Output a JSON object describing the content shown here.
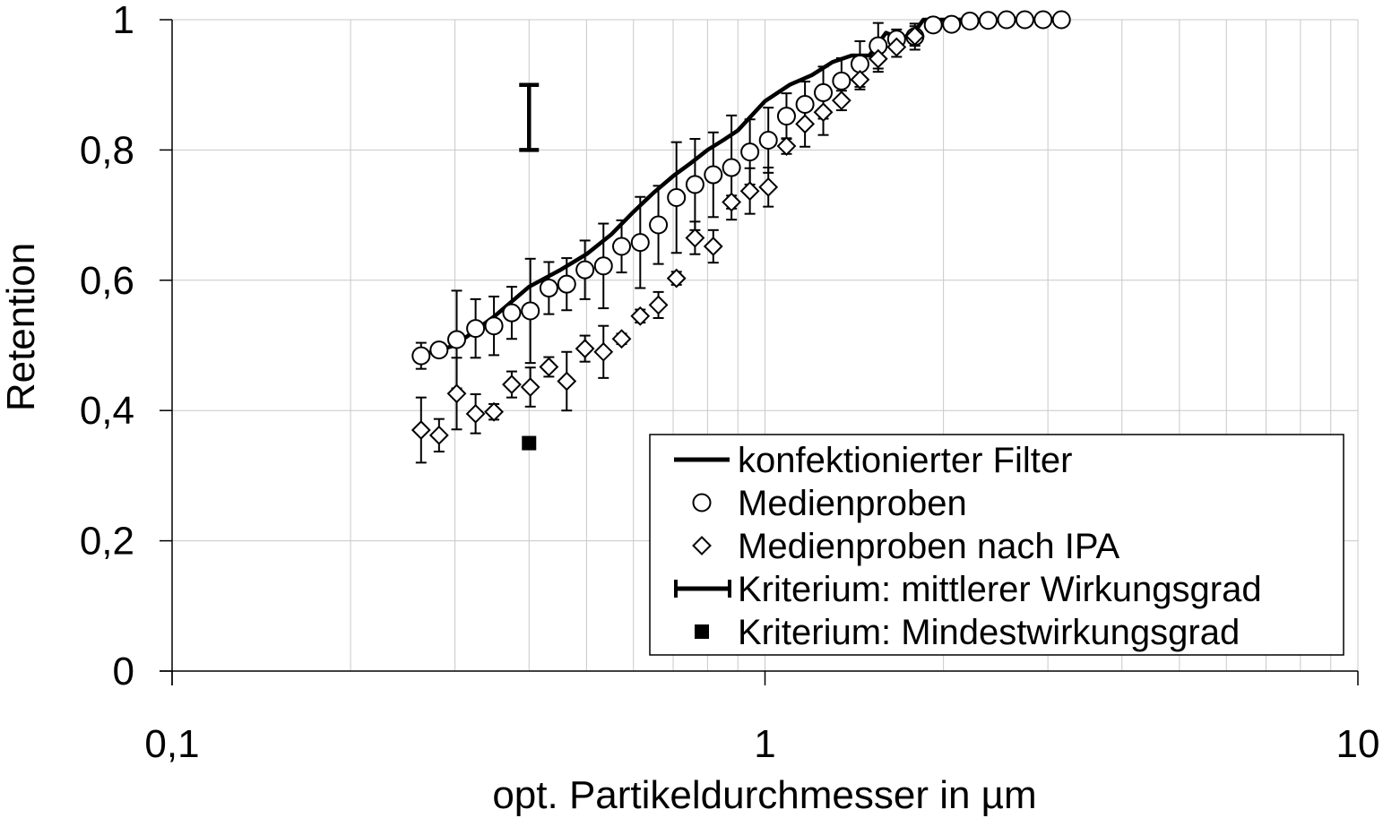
{
  "chart_data": {
    "type": "scatter",
    "xscale": "log",
    "xlim": [
      0.1,
      10
    ],
    "ylim": [
      0,
      1
    ],
    "grid": true,
    "xlabel": "opt. Partikeldurchmesser in µm",
    "ylabel": "Retention",
    "xticks": [
      0.1,
      1,
      10
    ],
    "xtick_labels": [
      "0,1",
      "1",
      "10"
    ],
    "yticks": [
      0,
      0.2,
      0.4,
      0.6,
      0.8,
      1
    ],
    "ytick_labels": [
      "0",
      "0,2",
      "0,4",
      "0,6",
      "0,8",
      "1"
    ],
    "legend_position": "bottom-right",
    "series": [
      {
        "name": "konfektionierter Filter",
        "kind": "line",
        "x": [
          0.263,
          0.3,
          0.35,
          0.4,
          0.45,
          0.5,
          0.55,
          0.6,
          0.65,
          0.7,
          0.75,
          0.8,
          0.85,
          0.9,
          1.0,
          1.1,
          1.2,
          1.3,
          1.4,
          1.5,
          1.6,
          1.7,
          1.8,
          1.85,
          1.9,
          2.0,
          2.2,
          2.5,
          2.8,
          3.13
        ],
        "y": [
          0.485,
          0.5,
          0.545,
          0.59,
          0.615,
          0.64,
          0.67,
          0.705,
          0.735,
          0.76,
          0.78,
          0.8,
          0.815,
          0.83,
          0.875,
          0.9,
          0.915,
          0.935,
          0.945,
          0.945,
          0.98,
          0.97,
          0.985,
          1.0,
          1.0,
          1.0,
          1.0,
          1.0,
          1.0,
          1.0
        ]
      },
      {
        "name": "Medienproben",
        "kind": "scatter",
        "marker": "circle",
        "x": [
          0.263,
          0.282,
          0.302,
          0.325,
          0.349,
          0.374,
          0.402,
          0.432,
          0.463,
          0.497,
          0.534,
          0.573,
          0.616,
          0.661,
          0.709,
          0.762,
          0.818,
          0.878,
          0.943,
          1.013,
          1.087,
          1.168,
          1.254,
          1.346,
          1.446,
          1.552,
          1.667,
          1.79,
          1.922,
          2.064,
          2.216,
          2.379,
          2.555,
          2.743,
          2.945,
          3.162
        ],
        "y": [
          0.484,
          0.493,
          0.509,
          0.526,
          0.53,
          0.55,
          0.553,
          0.588,
          0.594,
          0.616,
          0.622,
          0.652,
          0.658,
          0.685,
          0.727,
          0.747,
          0.762,
          0.773,
          0.797,
          0.815,
          0.852,
          0.87,
          0.888,
          0.906,
          0.932,
          0.96,
          0.97,
          0.974,
          0.992,
          0.993,
          0.998,
          0.999,
          1.0,
          1.0,
          1.0,
          1.0
        ],
        "err": [
          0.02,
          0.01,
          0.075,
          0.045,
          0.045,
          0.04,
          0.08,
          0.04,
          0.04,
          0.045,
          0.065,
          0.04,
          0.07,
          0.06,
          0.085,
          0.07,
          0.065,
          0.08,
          0.05,
          0.05,
          0.035,
          0.035,
          0.04,
          0.035,
          0.035,
          0.035,
          0.015,
          0.02,
          0.01,
          0.01,
          0.005,
          0.005,
          0.002,
          0.002,
          0.002,
          0.002
        ]
      },
      {
        "name": "Medienproben nach IPA",
        "kind": "scatter",
        "marker": "diamond",
        "x": [
          0.263,
          0.282,
          0.302,
          0.325,
          0.349,
          0.374,
          0.402,
          0.432,
          0.463,
          0.497,
          0.534,
          0.573,
          0.616,
          0.661,
          0.709,
          0.762,
          0.818,
          0.878,
          0.943,
          1.013,
          1.087,
          1.168,
          1.254,
          1.346,
          1.446,
          1.552,
          1.667,
          1.79
        ],
        "y": [
          0.37,
          0.362,
          0.426,
          0.395,
          0.398,
          0.44,
          0.436,
          0.467,
          0.445,
          0.495,
          0.49,
          0.51,
          0.545,
          0.562,
          0.603,
          0.665,
          0.652,
          0.72,
          0.737,
          0.743,
          0.806,
          0.84,
          0.858,
          0.876,
          0.908,
          0.94,
          0.958,
          0.975
        ],
        "err": [
          0.05,
          0.025,
          0.055,
          0.03,
          0.012,
          0.02,
          0.03,
          0.015,
          0.045,
          0.02,
          0.04,
          0.008,
          0.01,
          0.02,
          0.01,
          0.025,
          0.025,
          0.01,
          0.035,
          0.03,
          0.012,
          0.035,
          0.035,
          0.015,
          0.015,
          0.02,
          0.015,
          0.015
        ]
      },
      {
        "name": "Kriterium: mittlerer Wirkungsgrad",
        "kind": "range",
        "x": 0.4,
        "y_low": 0.8,
        "y_high": 0.9
      },
      {
        "name": "Kriterium: Mindestwirkungsgrad",
        "kind": "scatter",
        "marker": "square-filled",
        "x": [
          0.4
        ],
        "y": [
          0.35
        ]
      }
    ],
    "colors": {
      "ink": "#000000",
      "grid": "#c8c8c8",
      "background": "#ffffff"
    }
  }
}
